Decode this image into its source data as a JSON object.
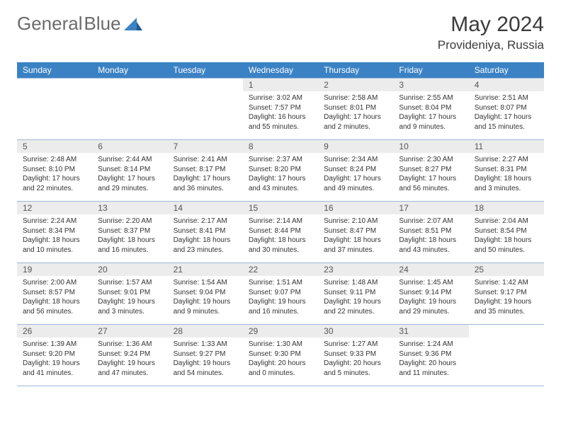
{
  "logo": {
    "text1": "General",
    "text2": "Blue"
  },
  "title": "May 2024",
  "location": "Provideniya, Russia",
  "colors": {
    "header_bg": "#3b82c4",
    "header_text": "#ffffff",
    "daynum_bg": "#ececec",
    "grid_border": "#9bb8d8",
    "logo_gray": "#6b6b6b",
    "logo_blue": "#3b82c4"
  },
  "day_names": [
    "Sunday",
    "Monday",
    "Tuesday",
    "Wednesday",
    "Thursday",
    "Friday",
    "Saturday"
  ],
  "weeks": [
    [
      {
        "n": "",
        "sr": "",
        "ss": "",
        "dl": ""
      },
      {
        "n": "",
        "sr": "",
        "ss": "",
        "dl": ""
      },
      {
        "n": "",
        "sr": "",
        "ss": "",
        "dl": ""
      },
      {
        "n": "1",
        "sr": "Sunrise: 3:02 AM",
        "ss": "Sunset: 7:57 PM",
        "dl": "Daylight: 16 hours and 55 minutes."
      },
      {
        "n": "2",
        "sr": "Sunrise: 2:58 AM",
        "ss": "Sunset: 8:01 PM",
        "dl": "Daylight: 17 hours and 2 minutes."
      },
      {
        "n": "3",
        "sr": "Sunrise: 2:55 AM",
        "ss": "Sunset: 8:04 PM",
        "dl": "Daylight: 17 hours and 9 minutes."
      },
      {
        "n": "4",
        "sr": "Sunrise: 2:51 AM",
        "ss": "Sunset: 8:07 PM",
        "dl": "Daylight: 17 hours and 15 minutes."
      }
    ],
    [
      {
        "n": "5",
        "sr": "Sunrise: 2:48 AM",
        "ss": "Sunset: 8:10 PM",
        "dl": "Daylight: 17 hours and 22 minutes."
      },
      {
        "n": "6",
        "sr": "Sunrise: 2:44 AM",
        "ss": "Sunset: 8:14 PM",
        "dl": "Daylight: 17 hours and 29 minutes."
      },
      {
        "n": "7",
        "sr": "Sunrise: 2:41 AM",
        "ss": "Sunset: 8:17 PM",
        "dl": "Daylight: 17 hours and 36 minutes."
      },
      {
        "n": "8",
        "sr": "Sunrise: 2:37 AM",
        "ss": "Sunset: 8:20 PM",
        "dl": "Daylight: 17 hours and 43 minutes."
      },
      {
        "n": "9",
        "sr": "Sunrise: 2:34 AM",
        "ss": "Sunset: 8:24 PM",
        "dl": "Daylight: 17 hours and 49 minutes."
      },
      {
        "n": "10",
        "sr": "Sunrise: 2:30 AM",
        "ss": "Sunset: 8:27 PM",
        "dl": "Daylight: 17 hours and 56 minutes."
      },
      {
        "n": "11",
        "sr": "Sunrise: 2:27 AM",
        "ss": "Sunset: 8:31 PM",
        "dl": "Daylight: 18 hours and 3 minutes."
      }
    ],
    [
      {
        "n": "12",
        "sr": "Sunrise: 2:24 AM",
        "ss": "Sunset: 8:34 PM",
        "dl": "Daylight: 18 hours and 10 minutes."
      },
      {
        "n": "13",
        "sr": "Sunrise: 2:20 AM",
        "ss": "Sunset: 8:37 PM",
        "dl": "Daylight: 18 hours and 16 minutes."
      },
      {
        "n": "14",
        "sr": "Sunrise: 2:17 AM",
        "ss": "Sunset: 8:41 PM",
        "dl": "Daylight: 18 hours and 23 minutes."
      },
      {
        "n": "15",
        "sr": "Sunrise: 2:14 AM",
        "ss": "Sunset: 8:44 PM",
        "dl": "Daylight: 18 hours and 30 minutes."
      },
      {
        "n": "16",
        "sr": "Sunrise: 2:10 AM",
        "ss": "Sunset: 8:47 PM",
        "dl": "Daylight: 18 hours and 37 minutes."
      },
      {
        "n": "17",
        "sr": "Sunrise: 2:07 AM",
        "ss": "Sunset: 8:51 PM",
        "dl": "Daylight: 18 hours and 43 minutes."
      },
      {
        "n": "18",
        "sr": "Sunrise: 2:04 AM",
        "ss": "Sunset: 8:54 PM",
        "dl": "Daylight: 18 hours and 50 minutes."
      }
    ],
    [
      {
        "n": "19",
        "sr": "Sunrise: 2:00 AM",
        "ss": "Sunset: 8:57 PM",
        "dl": "Daylight: 18 hours and 56 minutes."
      },
      {
        "n": "20",
        "sr": "Sunrise: 1:57 AM",
        "ss": "Sunset: 9:01 PM",
        "dl": "Daylight: 19 hours and 3 minutes."
      },
      {
        "n": "21",
        "sr": "Sunrise: 1:54 AM",
        "ss": "Sunset: 9:04 PM",
        "dl": "Daylight: 19 hours and 9 minutes."
      },
      {
        "n": "22",
        "sr": "Sunrise: 1:51 AM",
        "ss": "Sunset: 9:07 PM",
        "dl": "Daylight: 19 hours and 16 minutes."
      },
      {
        "n": "23",
        "sr": "Sunrise: 1:48 AM",
        "ss": "Sunset: 9:11 PM",
        "dl": "Daylight: 19 hours and 22 minutes."
      },
      {
        "n": "24",
        "sr": "Sunrise: 1:45 AM",
        "ss": "Sunset: 9:14 PM",
        "dl": "Daylight: 19 hours and 29 minutes."
      },
      {
        "n": "25",
        "sr": "Sunrise: 1:42 AM",
        "ss": "Sunset: 9:17 PM",
        "dl": "Daylight: 19 hours and 35 minutes."
      }
    ],
    [
      {
        "n": "26",
        "sr": "Sunrise: 1:39 AM",
        "ss": "Sunset: 9:20 PM",
        "dl": "Daylight: 19 hours and 41 minutes."
      },
      {
        "n": "27",
        "sr": "Sunrise: 1:36 AM",
        "ss": "Sunset: 9:24 PM",
        "dl": "Daylight: 19 hours and 47 minutes."
      },
      {
        "n": "28",
        "sr": "Sunrise: 1:33 AM",
        "ss": "Sunset: 9:27 PM",
        "dl": "Daylight: 19 hours and 54 minutes."
      },
      {
        "n": "29",
        "sr": "Sunrise: 1:30 AM",
        "ss": "Sunset: 9:30 PM",
        "dl": "Daylight: 20 hours and 0 minutes."
      },
      {
        "n": "30",
        "sr": "Sunrise: 1:27 AM",
        "ss": "Sunset: 9:33 PM",
        "dl": "Daylight: 20 hours and 5 minutes."
      },
      {
        "n": "31",
        "sr": "Sunrise: 1:24 AM",
        "ss": "Sunset: 9:36 PM",
        "dl": "Daylight: 20 hours and 11 minutes."
      },
      {
        "n": "",
        "sr": "",
        "ss": "",
        "dl": ""
      }
    ]
  ]
}
